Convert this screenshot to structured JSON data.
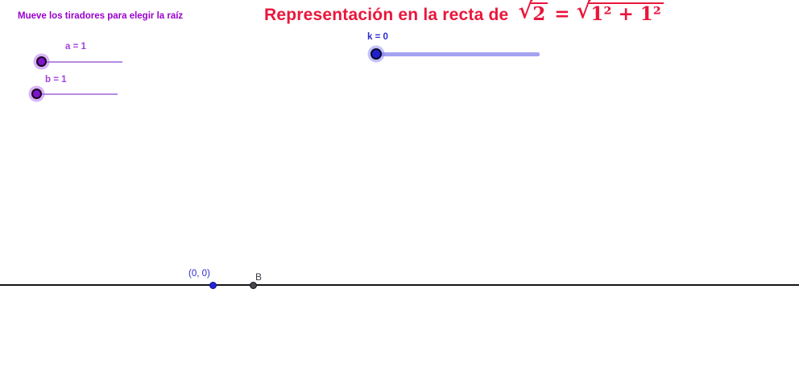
{
  "instruction": {
    "text": "Mueve los tiradores para elegir la raíz"
  },
  "title": {
    "text": "Representación en la recta de",
    "formula": {
      "sqrt_sign": "√",
      "lhs_radicand": "2",
      "equals": "=",
      "rhs_radicand": "1² + 1²"
    }
  },
  "sliders": {
    "a": {
      "name": "a",
      "value": 1,
      "label": "a = 1"
    },
    "b": {
      "name": "b",
      "value": 1,
      "label": "b = 1"
    },
    "k": {
      "name": "k",
      "value": 0,
      "label": "k = 0"
    }
  },
  "number_line": {
    "points": [
      {
        "label": "(0, 0)"
      },
      {
        "label": "B"
      }
    ]
  },
  "colors": {
    "title_red": "#e8173c",
    "instruction_purple": "#9900cc",
    "slider_label_purple": "#a143dc",
    "knob_purple": "#7d16c9",
    "halo_purple": "rgba(168, 90, 235, 0.45)",
    "purple_track": "#b78ae0",
    "label_blue": "#2a2ad0",
    "knob_blue": "#2121cc",
    "halo_blue": "rgba(120, 120, 240, 0.45)",
    "blue_track": "#a3a3f2",
    "point_blue": "#2424dd",
    "point_gray": "#46464e",
    "line_black": "#151515"
  }
}
